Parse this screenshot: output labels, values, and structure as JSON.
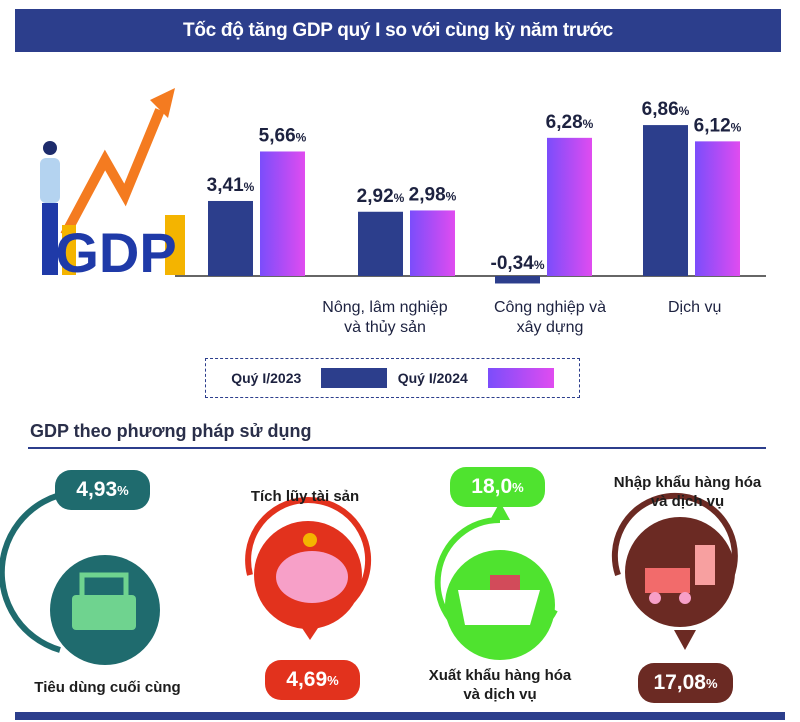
{
  "title": "Tốc độ tăng GDP quý I so với cùng kỳ năm trước",
  "chart_data": {
    "type": "bar",
    "title": "Tốc độ tăng GDP quý I so với cùng kỳ năm trước",
    "categories": [
      "",
      "Nông, lâm nghiệp và thủy sản",
      "Công nghiệp và xây dựng",
      "Dịch vụ"
    ],
    "series": [
      {
        "name": "Quý I/2023",
        "values": [
          3.41,
          2.92,
          -0.34,
          6.86
        ],
        "labels": [
          "3,41",
          "2,92",
          "-0,34",
          "6,86"
        ],
        "color": "#2c3e8c"
      },
      {
        "name": "Quý I/2024",
        "values": [
          5.66,
          2.98,
          6.28,
          6.12
        ],
        "labels": [
          "5,66",
          "2,98",
          "6,28",
          "6,12"
        ],
        "color": "#b24cf0"
      }
    ],
    "unit": "%",
    "legend": "bottom",
    "grid": false
  },
  "gdp_logo_text": "GDP",
  "section2": {
    "title": "GDP theo phương pháp sử dụng",
    "items": [
      {
        "label": "Tiêu dùng cuối cùng",
        "value": "4,93",
        "unit": "%",
        "color": "#1f6b6e",
        "direction": "up",
        "icon": "shopping-basket-icon"
      },
      {
        "label": "Tích lũy tài sản",
        "value": "4,69",
        "unit": "%",
        "color": "#e2321d",
        "direction": "down",
        "icon": "piggy-bank-icon"
      },
      {
        "label": "Xuất khẩu hàng hóa và dịch vụ",
        "value": "18,0",
        "unit": "%",
        "color": "#4fe32f",
        "direction": "up",
        "icon": "cargo-ship-icon"
      },
      {
        "label": "Nhập khẩu hàng hóa và dịch vụ",
        "value": "17,08",
        "unit": "%",
        "color": "#6b2a23",
        "direction": "down",
        "icon": "forklift-icon"
      }
    ]
  }
}
